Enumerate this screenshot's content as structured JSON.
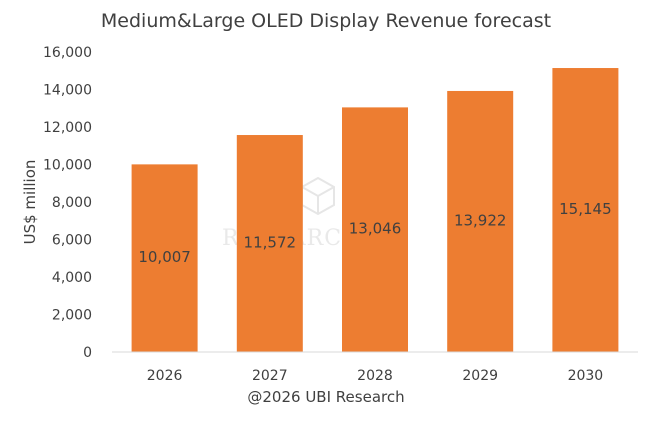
{
  "chart_data": {
    "type": "bar",
    "title": "Medium&Large OLED Display Revenue forecast",
    "ylabel": "US$ million",
    "xlabel": "",
    "categories": [
      "2026",
      "2027",
      "2028",
      "2029",
      "2030"
    ],
    "values": [
      10007,
      11572,
      13046,
      13922,
      15145
    ],
    "value_labels": [
      "10,007",
      "11,572",
      "13,046",
      "13,922",
      "15,145"
    ],
    "ylim": [
      0,
      16000
    ],
    "yticks": [
      0,
      2000,
      4000,
      6000,
      8000,
      10000,
      12000,
      14000,
      16000
    ],
    "ytick_labels": [
      "0",
      "2,000",
      "4,000",
      "6,000",
      "8,000",
      "10,000",
      "12,000",
      "14,000",
      "16,000"
    ],
    "bar_color": "#ED7D31",
    "grid": false,
    "legend": "none",
    "source": "@2026 UBI Research",
    "watermark": "RESEARCH"
  }
}
